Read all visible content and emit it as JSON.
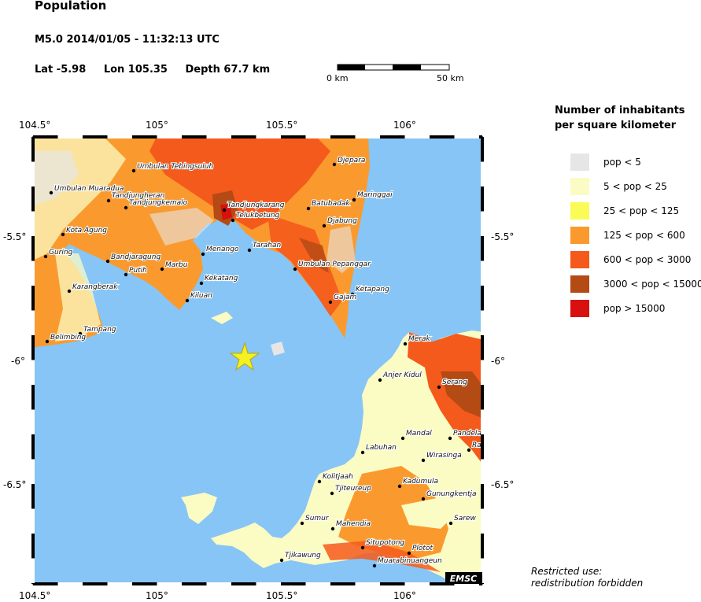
{
  "header": {
    "title": "Population",
    "event": "M5.0  2014/01/05 - 11:32:13 UTC",
    "lat": "Lat -5.98",
    "lon": "Lon 105.35",
    "depth": "Depth  67.7 km"
  },
  "scalebar": {
    "start_label": "0 km",
    "end_label": "50 km"
  },
  "axes": {
    "x_ticks": [
      "104.5°",
      "105°",
      "105.5°",
      "106°"
    ],
    "y_ticks": [
      "-5.5°",
      "-6°",
      "-6.5°"
    ]
  },
  "legend": {
    "title_line1": "Number of inhabitants",
    "title_line2": "per square kilometer",
    "items": [
      {
        "label": "pop < 5",
        "color": "#e6e6e6"
      },
      {
        "label": "5 < pop < 25",
        "color": "#fbfbc4"
      },
      {
        "label": "25 < pop < 125",
        "color": "#fbfb58"
      },
      {
        "label": "125 < pop < 600",
        "color": "#fa9a2e"
      },
      {
        "label": "600 < pop < 3000",
        "color": "#f45a1c"
      },
      {
        "label": "3000 < pop < 15000",
        "color": "#b44a14"
      },
      {
        "label": "pop > 15000",
        "color": "#d81010"
      }
    ]
  },
  "colors": {
    "sea": "#86c5f5",
    "epicenter": "#f5f022"
  },
  "epicenter_icon": "star-icon",
  "places": [
    "Djepara",
    "Umbulan Tebingsuluh",
    "Umbulan Muaradua",
    "Tandjungheran",
    "Tandjungkemalo",
    "Tandjungkarang",
    "Telukbetung",
    "Batubadak",
    "Maringgai",
    "Djabung",
    "Kota Agung",
    "Guring",
    "Bandjaragung",
    "Putih",
    "Marbu",
    "Menango",
    "Tarahan",
    "Umbulan Pepanggar",
    "Kekatang",
    "Kiluan",
    "Karangberak",
    "Ketapang",
    "Gajam",
    "Tampang",
    "Belimbing",
    "Merak",
    "Anjer Kidul",
    "Serang",
    "Mandal",
    "Pandelang",
    "Ra",
    "Labuhan",
    "Wirasinga",
    "Kolitjaah",
    "Kadumula",
    "Tjiteureup",
    "Gunungkentja",
    "Sumur",
    "Sarew",
    "Mahendia",
    "Situpotong",
    "Plotot",
    "Tjikawung",
    "Muarabinuangeun"
  ],
  "watermark": "EMSC",
  "footnote": {
    "line1": "Restricted use:",
    "line2": "redistribution forbidden"
  }
}
